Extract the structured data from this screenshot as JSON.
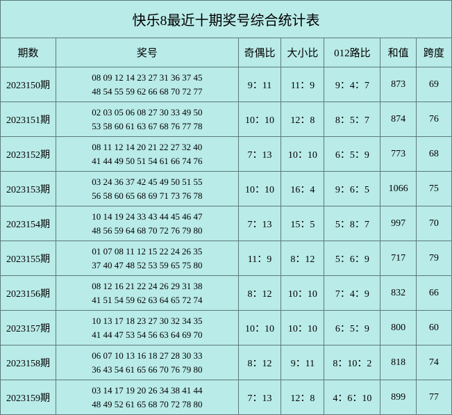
{
  "title": "快乐8最近十期奖号综合统计表",
  "background_color": "#b9ebe8",
  "border_color": "#5a7a78",
  "text_color": "#000000",
  "headers": {
    "period": "期数",
    "numbers": "奖号",
    "odd_even": "奇偶比",
    "big_small": "大小比",
    "route_012": "012路比",
    "sum": "和值",
    "span": "跨度"
  },
  "rows": [
    {
      "period": "2023150期",
      "line1": "08 09 12 14 23 27 31 36 37 45",
      "line2": "48 54 55 59 62 66 68 70 72 77",
      "odd_even": "9：11",
      "big_small": "11：9",
      "route_012": "9：4：7",
      "sum": "873",
      "span": "69"
    },
    {
      "period": "2023151期",
      "line1": "02 03 05 06 08 27 30 33 49 50",
      "line2": "53 58 60 61 63 67 68 76 77 78",
      "odd_even": "10：10",
      "big_small": "12：8",
      "route_012": "8：5：7",
      "sum": "874",
      "span": "76"
    },
    {
      "period": "2023152期",
      "line1": "08 11 12 14 20 21 22 27 32 40",
      "line2": "41 44 49 50 51 54 61 66 74 76",
      "odd_even": "7：13",
      "big_small": "10：10",
      "route_012": "6：5：9",
      "sum": "773",
      "span": "68"
    },
    {
      "period": "2023153期",
      "line1": "03 24 36 37 42 45 49 50 51 55",
      "line2": "56 58 60 65 68 69 71 73 76 78",
      "odd_even": "10：10",
      "big_small": "16：4",
      "route_012": "9：6：5",
      "sum": "1066",
      "span": "75"
    },
    {
      "period": "2023154期",
      "line1": "10 14 19 24 33 43 44 45 46 47",
      "line2": "48 56 59 64 68 70 72 76 79 80",
      "odd_even": "7：13",
      "big_small": "15：5",
      "route_012": "5：8：7",
      "sum": "997",
      "span": "70"
    },
    {
      "period": "2023155期",
      "line1": "01 07 08 11 12 15 22 24 26 35",
      "line2": "37 40 47 48 52 53 59 65 75 80",
      "odd_even": "11：9",
      "big_small": "8：12",
      "route_012": "5：6：9",
      "sum": "717",
      "span": "79"
    },
    {
      "period": "2023156期",
      "line1": "08 12 16 21 22 24 26 29 31 38",
      "line2": "41 51 54 59 62 63 64 65 72 74",
      "odd_even": "8：12",
      "big_small": "10：10",
      "route_012": "7：4：9",
      "sum": "832",
      "span": "66"
    },
    {
      "period": "2023157期",
      "line1": "10 13 17 18 23 27 30 32 34 35",
      "line2": "41 44 47 53 54 56 63 64 69 70",
      "odd_even": "10：10",
      "big_small": "10：10",
      "route_012": "6：5：9",
      "sum": "800",
      "span": "60"
    },
    {
      "period": "2023158期",
      "line1": "06 07 10 13 16 18 27 28 30 33",
      "line2": "36 43 54 61 65 66 70 76 79 80",
      "odd_even": "8：12",
      "big_small": "9：11",
      "route_012": "8：10：2",
      "sum": "818",
      "span": "74"
    },
    {
      "period": "2023159期",
      "line1": "03 14 17 19 20 26 34 38 41 44",
      "line2": "48 49 52 61 65 68 70 72 78 80",
      "odd_even": "7：13",
      "big_small": "12：8",
      "route_012": "4：6：10",
      "sum": "899",
      "span": "77"
    }
  ]
}
